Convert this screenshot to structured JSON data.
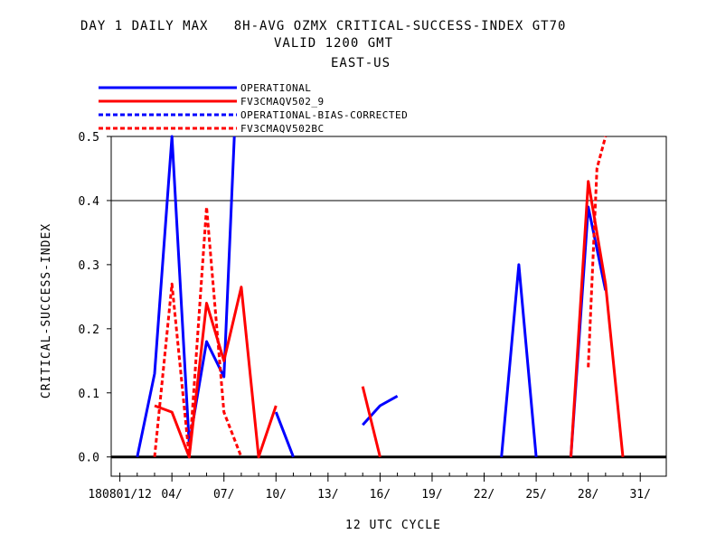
{
  "chart_data": {
    "type": "line",
    "title": "DAY 1 DAILY MAX   8H-AVG OZMX CRITICAL-SUCCESS-INDEX GT70",
    "subtitle": "VALID 1200 GMT",
    "region": "EAST-US",
    "xlabel": "12 UTC CYCLE",
    "ylabel": "CRITICAL-SUCCESS-INDEX",
    "xlim": [
      0.5,
      32.5
    ],
    "ylim": [
      -0.03,
      0.5
    ],
    "x_ticks": [
      {
        "x": 1,
        "label": "180801/12"
      },
      {
        "x": 4,
        "label": "04/"
      },
      {
        "x": 7,
        "label": "07/"
      },
      {
        "x": 10,
        "label": "10/"
      },
      {
        "x": 13,
        "label": "13/"
      },
      {
        "x": 16,
        "label": "16/"
      },
      {
        "x": 19,
        "label": "19/"
      },
      {
        "x": 22,
        "label": "22/"
      },
      {
        "x": 25,
        "label": "25/"
      },
      {
        "x": 28,
        "label": "28/"
      },
      {
        "x": 31,
        "label": "31/"
      }
    ],
    "y_ticks": [
      0.0,
      0.1,
      0.2,
      0.3,
      0.4,
      0.5
    ],
    "y_tick_labels": [
      "0.0",
      "0.1",
      "0.2",
      "0.3",
      "0.4",
      "0.5"
    ],
    "reference_lines": [
      0.0,
      0.4
    ],
    "legend_position": "top-left, above plot",
    "series": [
      {
        "name": "OPERATIONAL",
        "color": "#0000ff",
        "dash": "solid",
        "x": [
          2,
          3,
          4,
          5,
          6,
          7,
          7.6,
          null,
          10,
          11,
          null,
          15,
          16,
          17,
          null,
          23,
          24,
          25,
          null,
          27,
          28,
          29
        ],
        "y": [
          0.0,
          0.13,
          0.5,
          0.02,
          0.18,
          0.125,
          0.5,
          null,
          0.07,
          0.0,
          null,
          0.05,
          0.08,
          0.095,
          null,
          0.0,
          0.3,
          0.0,
          null,
          0.0,
          0.39,
          0.26
        ]
      },
      {
        "name": "FV3CMAQV502_9",
        "color": "#ff0000",
        "dash": "solid",
        "x": [
          3,
          4,
          5,
          6,
          7,
          8,
          9,
          10,
          null,
          15,
          16,
          null,
          27,
          28,
          29,
          30
        ],
        "y": [
          0.08,
          0.07,
          0.0,
          0.24,
          0.15,
          0.265,
          0.0,
          0.08,
          null,
          0.11,
          0.0,
          null,
          0.0,
          0.43,
          0.27,
          0.0
        ]
      },
      {
        "name": "OPERATIONAL-BIAS-CORRECTED",
        "color": "#0000ff",
        "dash": "dashed",
        "x": [],
        "y": []
      },
      {
        "name": "FV3CMAQV502BC",
        "color": "#ff0000",
        "dash": "dashed",
        "x": [
          3,
          4,
          5,
          6,
          7,
          8,
          null,
          28,
          28.5,
          29
        ],
        "y": [
          0.0,
          0.27,
          0.0,
          0.39,
          0.07,
          0.0,
          null,
          0.14,
          0.45,
          0.5
        ]
      }
    ]
  }
}
